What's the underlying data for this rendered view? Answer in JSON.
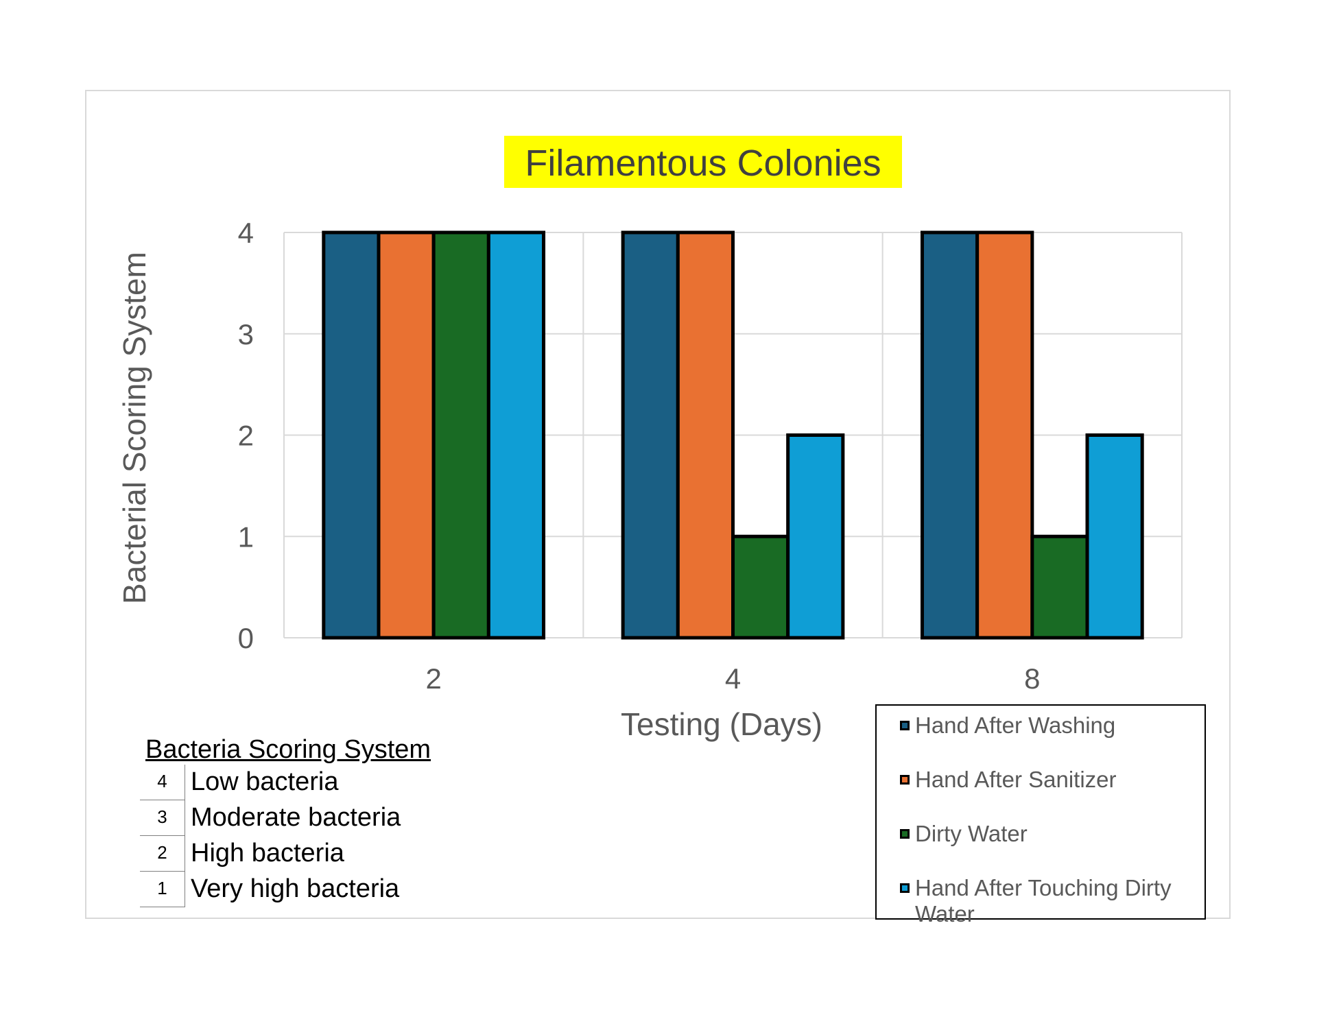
{
  "chart_data": {
    "type": "bar",
    "title": "Filamentous Colonies",
    "title_highlight_color": "#ffff00",
    "xlabel": "Testing (Days)",
    "ylabel": "Bacterial Scoring System",
    "categories": [
      "2",
      "4",
      "8"
    ],
    "ylim": [
      0,
      4
    ],
    "yticks": [
      "0",
      "1",
      "2",
      "3",
      "4"
    ],
    "grid": true,
    "legend_position": "bottom-right",
    "series": [
      {
        "name": "Hand After Washing",
        "color": "#1a5f84",
        "values": [
          4,
          4,
          4
        ]
      },
      {
        "name": "Hand After Sanitizer",
        "color": "#e97132",
        "values": [
          4,
          4,
          4
        ]
      },
      {
        "name": "Dirty Water",
        "color": "#196b24",
        "values": [
          4,
          1,
          1
        ]
      },
      {
        "name": "Hand After Touching Dirty Water",
        "color": "#0f9ed5",
        "values": [
          4,
          2,
          2
        ]
      }
    ]
  },
  "legend": {
    "items": [
      {
        "label": "Hand After Washing",
        "color": "#1a5f84"
      },
      {
        "label": "Hand After Sanitizer",
        "color": "#e97132"
      },
      {
        "label": "Dirty Water",
        "color": "#196b24"
      },
      {
        "label": "Hand After Touching Dirty Water",
        "color": "#0f9ed5"
      }
    ]
  },
  "scoring_system": {
    "title": "Bacteria Scoring System",
    "rows": [
      {
        "score": "4",
        "description": "Low bacteria"
      },
      {
        "score": "3",
        "description": "Moderate bacteria"
      },
      {
        "score": "2",
        "description": "High bacteria"
      },
      {
        "score": "1",
        "description": "Very high bacteria"
      }
    ]
  }
}
